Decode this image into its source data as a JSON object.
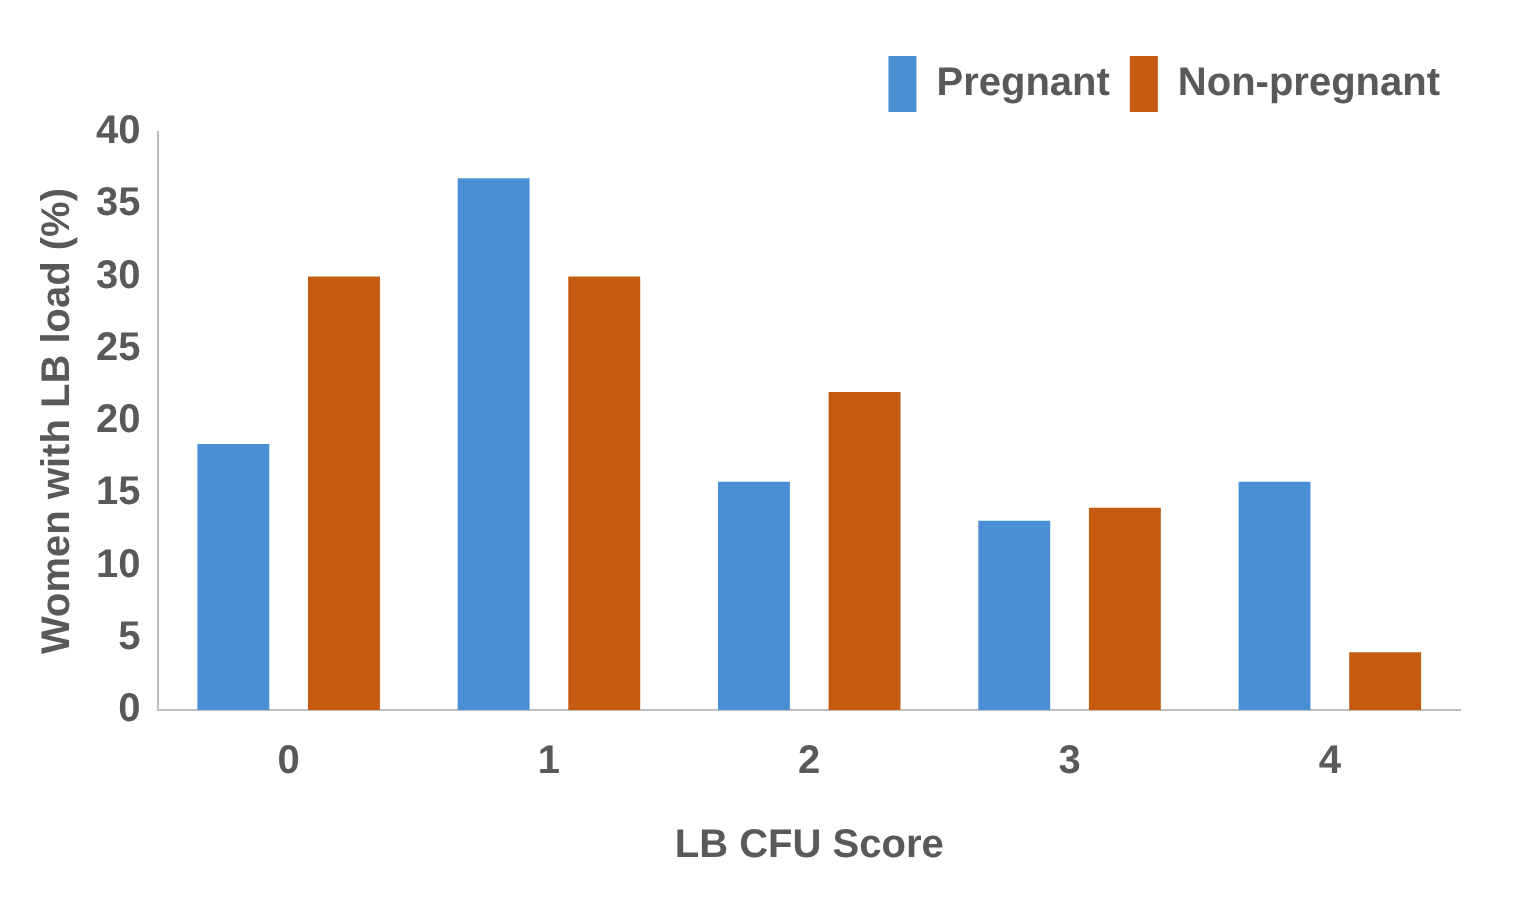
{
  "chart_data": {
    "type": "bar",
    "xlabel": "LB CFU Score",
    "ylabel": "Women with LB load (%)",
    "categories": [
      "0",
      "1",
      "2",
      "3",
      "4"
    ],
    "series": [
      {
        "name": "Pregnant",
        "color": "#4a8fd4",
        "values": [
          18.4,
          36.8,
          15.8,
          13.1,
          15.8
        ]
      },
      {
        "name": "Non-pregnant",
        "color": "#c55a11",
        "values": [
          30,
          30,
          22,
          14,
          4
        ]
      }
    ],
    "ylim": [
      0,
      40
    ],
    "yticks": [
      0,
      5,
      10,
      15,
      20,
      25,
      30,
      35,
      40
    ],
    "grid": false,
    "legend": "top right"
  }
}
